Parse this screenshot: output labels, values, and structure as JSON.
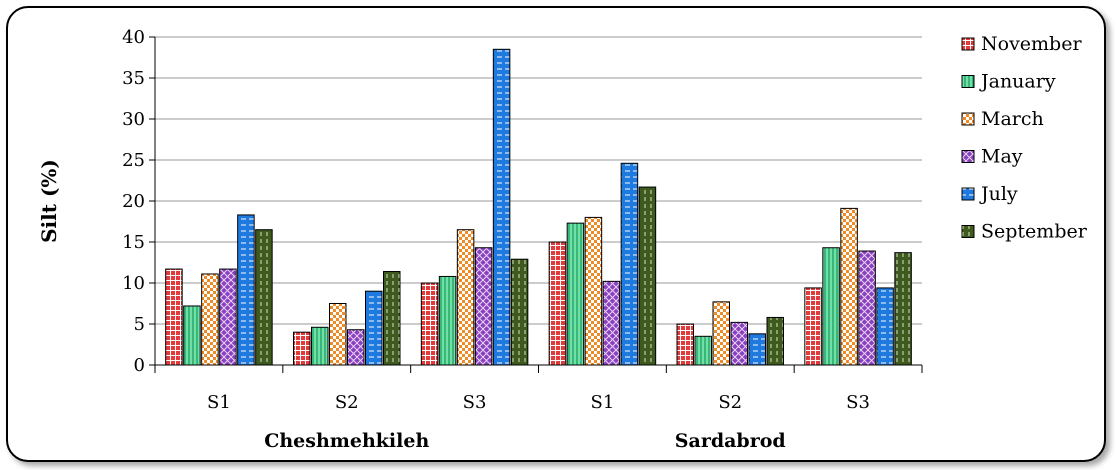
{
  "chart_data": {
    "type": "bar",
    "ylabel": "Silt (%)",
    "ylim": [
      0,
      40
    ],
    "yticks": [
      0,
      5,
      10,
      15,
      20,
      25,
      30,
      35,
      40
    ],
    "categories": [
      "S1",
      "S2",
      "S3",
      "S1",
      "S2",
      "S3"
    ],
    "groups": [
      {
        "label": "Cheshmehkileh",
        "categories": [
          "S1",
          "S2",
          "S3"
        ]
      },
      {
        "label": "Sardabrod",
        "categories": [
          "S1",
          "S2",
          "S3"
        ]
      }
    ],
    "series": [
      {
        "name": "November",
        "color": "#e23b3b",
        "pattern": "grid-red",
        "values": [
          11.7,
          4.0,
          10.0,
          15.0,
          5.0,
          9.4
        ]
      },
      {
        "name": "January",
        "color": "#6fe0a8",
        "pattern": "vstripe-green",
        "values": [
          7.2,
          4.6,
          10.8,
          17.3,
          3.5,
          14.3
        ]
      },
      {
        "name": "March",
        "color": "#f08a24",
        "pattern": "check-orange",
        "values": [
          11.1,
          7.5,
          16.5,
          18.0,
          7.7,
          19.1
        ]
      },
      {
        "name": "May",
        "color": "#8a3fbf",
        "pattern": "cross-purple",
        "values": [
          11.7,
          4.3,
          14.3,
          10.2,
          5.2,
          13.9
        ]
      },
      {
        "name": "July",
        "color": "#1f7ae0",
        "pattern": "dash-blue",
        "values": [
          18.3,
          9.0,
          38.5,
          24.6,
          3.8,
          9.4
        ]
      },
      {
        "name": "September",
        "color": "#3f5a1e",
        "pattern": "dash-olive",
        "values": [
          16.5,
          11.4,
          12.9,
          21.7,
          5.8,
          13.7
        ]
      }
    ],
    "grid": true,
    "legend_position": "right"
  }
}
